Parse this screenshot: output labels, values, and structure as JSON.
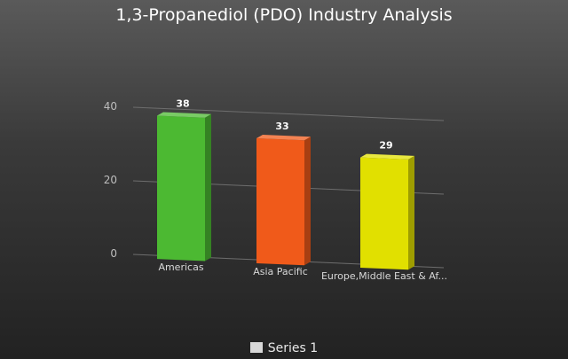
{
  "chart_data": {
    "type": "bar",
    "title": "1,3-Propanediol (PDO) Industry Analysis",
    "categories": [
      "Americas",
      "Asia Pacific",
      "Europe,Middle East & Af..."
    ],
    "series": [
      {
        "name": "Series 1",
        "values": [
          38,
          33,
          29
        ]
      }
    ],
    "bar_colors": [
      "#4cb932",
      "#f05a1a",
      "#e1e000"
    ],
    "yticks": [
      0,
      20,
      40
    ],
    "ylim": [
      0,
      40
    ],
    "grid": true,
    "legend": "bottom"
  }
}
